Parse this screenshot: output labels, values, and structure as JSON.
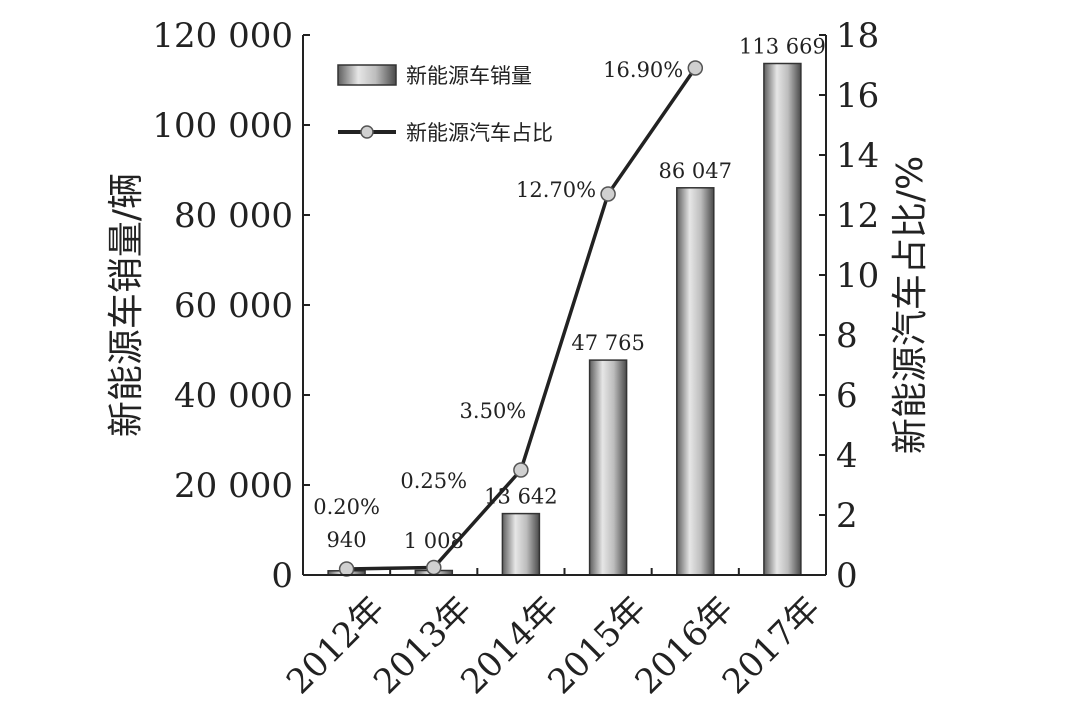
{
  "chart_data": {
    "type": "bar+line",
    "categories": [
      "2012年",
      "2013年",
      "2014年",
      "2015年",
      "2016年",
      "2017年"
    ],
    "bar_series": {
      "name": "新能源车销量",
      "values": [
        940,
        1008,
        13642,
        47765,
        86047,
        113669
      ],
      "labels": [
        "940",
        "1 008",
        "13 642",
        "47 765",
        "86 047",
        "113 669"
      ],
      "color": "#8c8c8c"
    },
    "line_series": {
      "name": "新能源汽车占比",
      "values": [
        0.2,
        0.25,
        3.5,
        12.7,
        16.9
      ],
      "labels": [
        "0.20%",
        "0.25%",
        "3.50%",
        "12.70%",
        "16.90%"
      ],
      "color": "#222222"
    },
    "y_left": {
      "label": "新能源车销量/辆",
      "range": [
        0,
        120000
      ],
      "ticks": [
        0,
        20000,
        40000,
        60000,
        80000,
        100000,
        120000
      ],
      "tick_labels": [
        "0",
        "20 000",
        "40 000",
        "60 000",
        "80 000",
        "100 000",
        "120 000"
      ]
    },
    "y_right": {
      "label": "新能源汽车占比/%",
      "range": [
        0,
        18
      ],
      "ticks": [
        0,
        2,
        4,
        6,
        8,
        10,
        12,
        14,
        16,
        18
      ],
      "tick_labels": [
        "0",
        "2",
        "4",
        "6",
        "8",
        "10",
        "12",
        "14",
        "16",
        "18"
      ]
    },
    "legend_position": "top-left",
    "grid": false
  }
}
